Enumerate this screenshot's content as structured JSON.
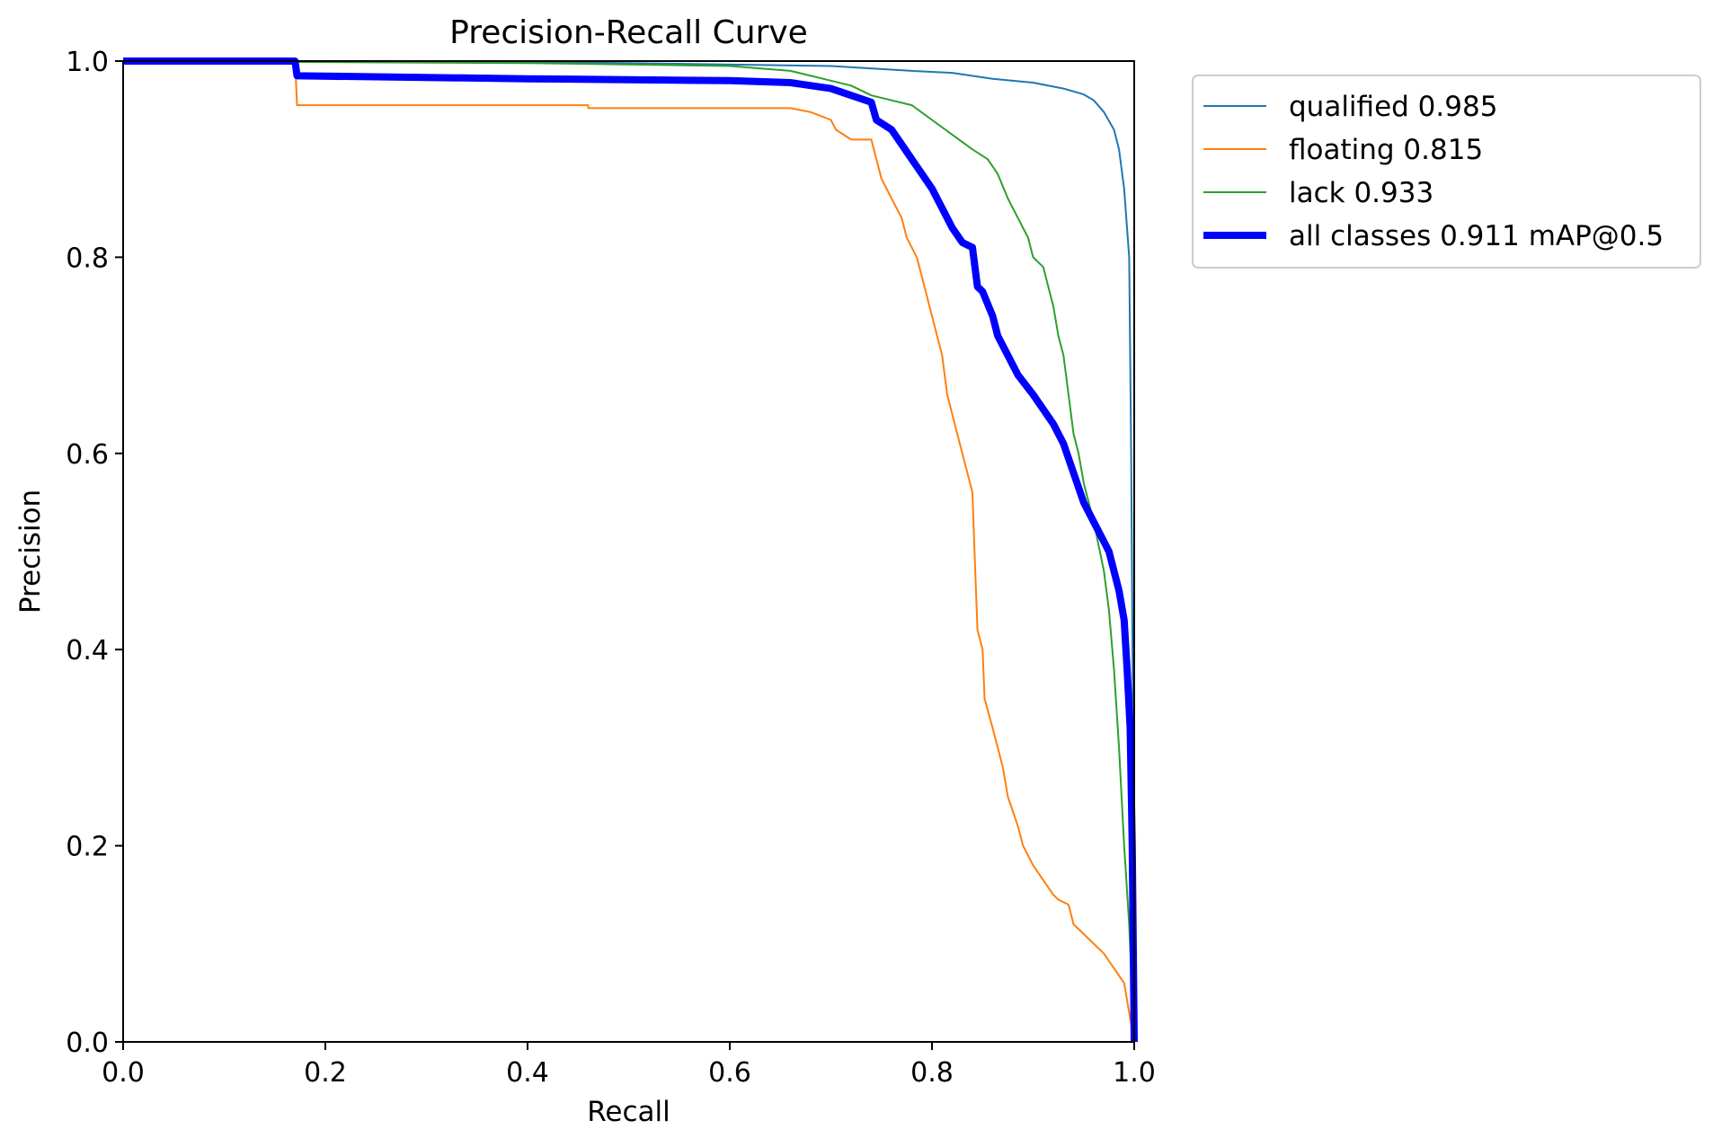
{
  "chart_data": {
    "type": "line",
    "title": "Precision-Recall Curve",
    "xlabel": "Recall",
    "ylabel": "Precision",
    "xlim": [
      0,
      1
    ],
    "ylim": [
      0,
      1
    ],
    "xticks": [
      "0.0",
      "0.2",
      "0.4",
      "0.6",
      "0.8",
      "1.0"
    ],
    "yticks": [
      "0.0",
      "0.2",
      "0.4",
      "0.6",
      "0.8",
      "1.0"
    ],
    "grid": false,
    "legend_position": "outside-top-right",
    "series": [
      {
        "name": "qualified 0.985",
        "color": "#1f77b4",
        "line_width": "thin",
        "x": [
          0,
          0.3,
          0.5,
          0.7,
          0.78,
          0.82,
          0.86,
          0.9,
          0.93,
          0.95,
          0.96,
          0.97,
          0.98,
          0.985,
          0.99,
          0.995,
          0.997,
          0.999,
          1.0
        ],
        "y": [
          1.0,
          1.0,
          0.998,
          0.995,
          0.99,
          0.988,
          0.982,
          0.978,
          0.972,
          0.966,
          0.96,
          0.948,
          0.93,
          0.91,
          0.87,
          0.8,
          0.6,
          0.3,
          0.0
        ]
      },
      {
        "name": "floating 0.815",
        "color": "#ff7f0e",
        "line_width": "thin",
        "x": [
          0,
          0.17,
          0.172,
          0.46,
          0.46,
          0.66,
          0.68,
          0.7,
          0.705,
          0.72,
          0.74,
          0.745,
          0.75,
          0.76,
          0.77,
          0.775,
          0.785,
          0.79,
          0.8,
          0.81,
          0.815,
          0.825,
          0.835,
          0.84,
          0.842,
          0.845,
          0.85,
          0.852,
          0.86,
          0.87,
          0.875,
          0.885,
          0.89,
          0.9,
          0.92,
          0.925,
          0.935,
          0.94,
          0.95,
          0.97,
          0.98,
          0.99,
          1.0
        ],
        "y": [
          1.0,
          1.0,
          0.955,
          0.955,
          0.952,
          0.952,
          0.948,
          0.94,
          0.93,
          0.92,
          0.92,
          0.9,
          0.88,
          0.86,
          0.84,
          0.82,
          0.8,
          0.78,
          0.74,
          0.7,
          0.66,
          0.62,
          0.58,
          0.56,
          0.5,
          0.42,
          0.4,
          0.35,
          0.32,
          0.28,
          0.25,
          0.22,
          0.2,
          0.18,
          0.15,
          0.145,
          0.14,
          0.12,
          0.11,
          0.09,
          0.075,
          0.06,
          0.0
        ]
      },
      {
        "name": "lack 0.933",
        "color": "#2ca02c",
        "line_width": "thin",
        "x": [
          0,
          0.4,
          0.6,
          0.66,
          0.7,
          0.72,
          0.74,
          0.76,
          0.78,
          0.8,
          0.82,
          0.84,
          0.855,
          0.865,
          0.875,
          0.885,
          0.895,
          0.9,
          0.91,
          0.915,
          0.92,
          0.925,
          0.93,
          0.935,
          0.94,
          0.945,
          0.95,
          0.96,
          0.97,
          0.975,
          0.98,
          0.985,
          0.99,
          0.995,
          1.0
        ],
        "y": [
          1.0,
          0.998,
          0.995,
          0.99,
          0.98,
          0.975,
          0.965,
          0.96,
          0.955,
          0.94,
          0.925,
          0.91,
          0.9,
          0.885,
          0.86,
          0.84,
          0.82,
          0.8,
          0.79,
          0.77,
          0.75,
          0.72,
          0.7,
          0.66,
          0.62,
          0.6,
          0.57,
          0.53,
          0.48,
          0.44,
          0.38,
          0.3,
          0.2,
          0.12,
          0.0
        ]
      },
      {
        "name": "all classes 0.911 mAP@0.5",
        "color": "#0000ff",
        "line_width": "thick",
        "x": [
          0,
          0.17,
          0.172,
          0.4,
          0.6,
          0.66,
          0.7,
          0.72,
          0.74,
          0.745,
          0.76,
          0.77,
          0.78,
          0.79,
          0.8,
          0.81,
          0.82,
          0.83,
          0.84,
          0.845,
          0.85,
          0.86,
          0.865,
          0.875,
          0.885,
          0.9,
          0.92,
          0.93,
          0.94,
          0.95,
          0.96,
          0.97,
          0.975,
          0.98,
          0.985,
          0.99,
          0.993,
          0.996,
          0.998,
          1.0
        ],
        "y": [
          1.0,
          1.0,
          0.985,
          0.982,
          0.98,
          0.978,
          0.972,
          0.965,
          0.958,
          0.94,
          0.93,
          0.915,
          0.9,
          0.885,
          0.87,
          0.85,
          0.83,
          0.815,
          0.81,
          0.77,
          0.765,
          0.74,
          0.72,
          0.7,
          0.68,
          0.66,
          0.63,
          0.61,
          0.58,
          0.55,
          0.53,
          0.51,
          0.5,
          0.48,
          0.46,
          0.43,
          0.38,
          0.32,
          0.2,
          0.0
        ]
      }
    ]
  }
}
